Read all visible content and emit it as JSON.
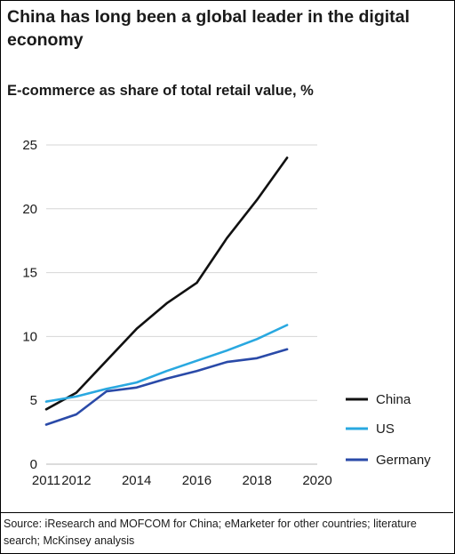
{
  "title": "China has long been a global leader in the digital economy",
  "subtitle": "E-commerce as share of total retail value, %",
  "source": "Source: iResearch and MOFCOM for China; eMarketer for other countries; literature search; McKinsey analysis",
  "chart_data": {
    "type": "line",
    "x": [
      2011,
      2012,
      2013,
      2014,
      2015,
      2016,
      2017,
      2018,
      2019
    ],
    "xticks": [
      2011,
      2012,
      2014,
      2016,
      2018,
      2020
    ],
    "xlim": [
      2011,
      2020
    ],
    "yticks": [
      0,
      5,
      10,
      15,
      20,
      25
    ],
    "ylim": [
      0,
      25
    ],
    "grid": true,
    "legend": "right",
    "series": [
      {
        "name": "China",
        "color": "#111111",
        "values": [
          4.3,
          5.6,
          8.1,
          10.6,
          12.6,
          14.2,
          17.7,
          20.7,
          24.0
        ]
      },
      {
        "name": "US",
        "color": "#29a8e0",
        "values": [
          4.9,
          5.3,
          5.9,
          6.4,
          7.3,
          8.1,
          8.9,
          9.8,
          10.9
        ]
      },
      {
        "name": "Germany",
        "color": "#2a4aa8",
        "values": [
          3.1,
          3.9,
          5.7,
          6.0,
          6.7,
          7.3,
          8.0,
          8.3,
          9.0
        ]
      }
    ]
  }
}
